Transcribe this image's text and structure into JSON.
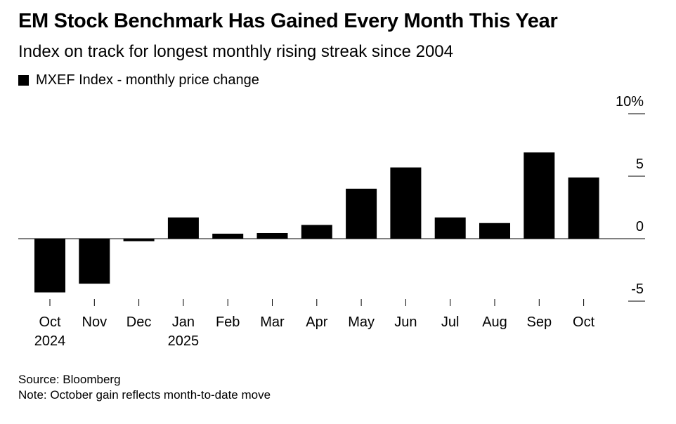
{
  "colors": {
    "bar": "#000000",
    "text": "#000000",
    "background": "#ffffff"
  },
  "chart_data": {
    "type": "bar",
    "title": "EM Stock Benchmark Has Gained Every Month This Year",
    "subtitle": "Index on track for longest monthly rising streak since 2004",
    "legend": "MXEF Index - monthly price change",
    "categories": [
      "Oct",
      "Nov",
      "Dec",
      "Jan",
      "Feb",
      "Mar",
      "Apr",
      "May",
      "Jun",
      "Jul",
      "Aug",
      "Sep",
      "Oct"
    ],
    "year_labels": [
      "2024",
      "",
      "",
      "2025",
      "",
      "",
      "",
      "",
      "",
      "",
      "",
      "",
      ""
    ],
    "values": [
      -4.3,
      -3.6,
      -0.2,
      1.7,
      0.4,
      0.45,
      1.1,
      4.0,
      5.7,
      1.7,
      1.25,
      6.9,
      4.9
    ],
    "yticks": [
      10,
      5,
      0,
      -5
    ],
    "ytick_labels": [
      "10%",
      "5",
      "0",
      "-5"
    ],
    "ylim": [
      -5,
      10
    ],
    "xlabel": "",
    "ylabel": "",
    "source": "Source: Bloomberg",
    "note": "Note: October gain reflects month-to-date move"
  }
}
